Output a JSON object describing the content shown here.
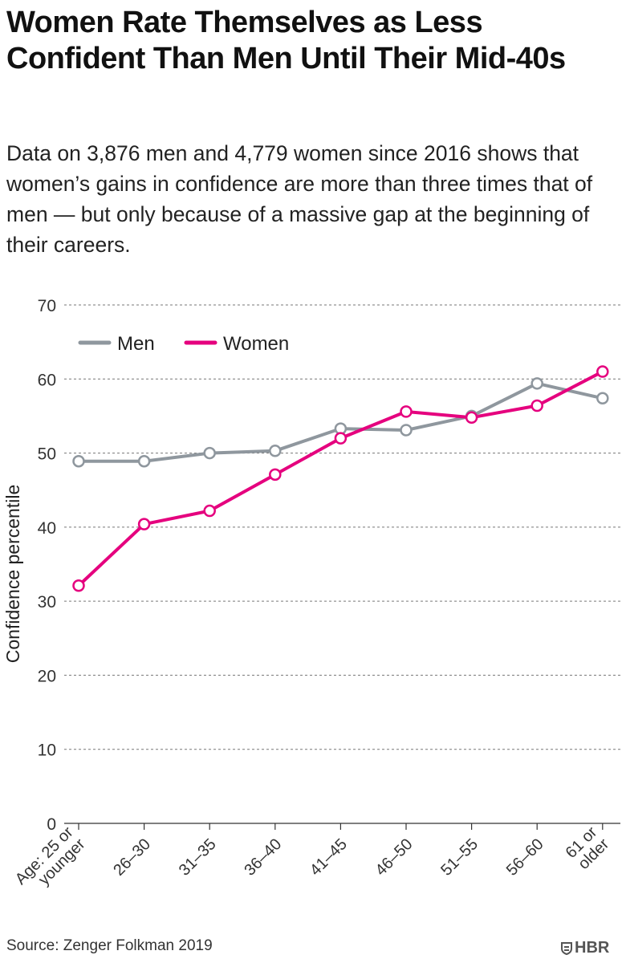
{
  "title": "Women Rate Themselves as Less Confident Than Men Until Their Mid-40s",
  "subtitle": "Data on 3,876 men and 4,779 women since 2016 shows that women’s gains in confidence are more than three times that of men — but only because of a massive gap at the beginning of their careers.",
  "source": "Source: Zenger Folkman 2019",
  "logo": "HBR",
  "colors": {
    "men": "#8f979e",
    "women": "#e5007e",
    "grid": "#777777"
  },
  "chart_data": {
    "type": "line",
    "title": "",
    "xlabel": "",
    "ylabel": "Confidence percentile",
    "ylim": [
      0,
      70
    ],
    "yticks": [
      0,
      10,
      20,
      30,
      40,
      50,
      60,
      70
    ],
    "categories": [
      [
        "Age: 25 or",
        "younger"
      ],
      [
        "26–30"
      ],
      [
        "31–35"
      ],
      [
        "36–40"
      ],
      [
        "41–45"
      ],
      [
        "46–50"
      ],
      [
        "51–55"
      ],
      [
        "56–60"
      ],
      [
        "61 or",
        "older"
      ]
    ],
    "legend_position": "top-left",
    "series": [
      {
        "name": "Men",
        "color": "#8f979e",
        "values": [
          48.9,
          48.9,
          50.0,
          50.3,
          53.3,
          53.1,
          55.0,
          59.4,
          57.4
        ]
      },
      {
        "name": "Women",
        "color": "#e5007e",
        "values": [
          32.1,
          40.4,
          42.2,
          47.1,
          52.0,
          55.6,
          54.8,
          56.4,
          61.0
        ]
      }
    ]
  }
}
